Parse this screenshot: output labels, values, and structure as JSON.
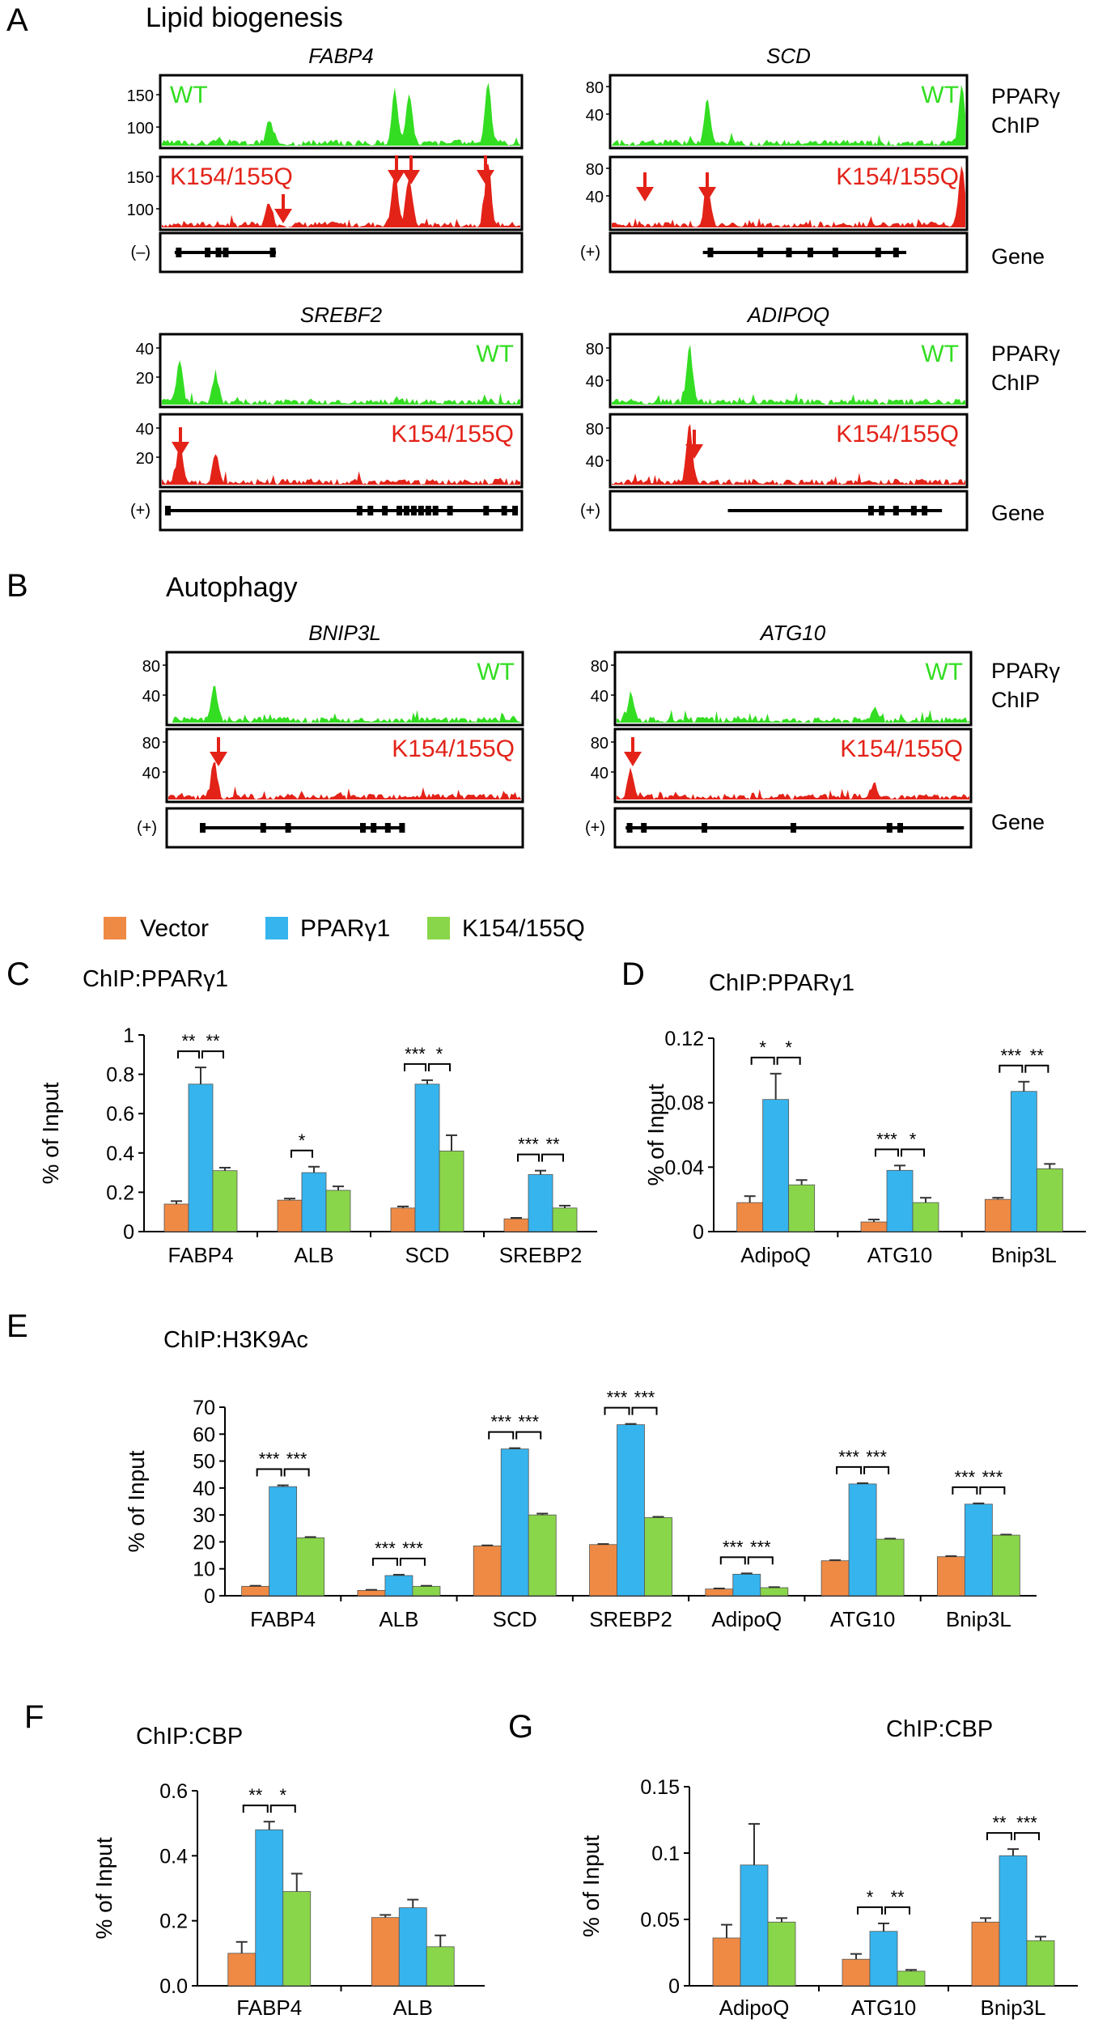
{
  "colors": {
    "wt": "#33dd22",
    "mut": "#e32218",
    "arrow": "#e32218",
    "vector": "#ef8a45",
    "ppar": "#36b4ee",
    "k154": "#8ad64a",
    "axis": "#000000"
  },
  "panels": {
    "A": "A",
    "A_title": "Lipid biogenesis",
    "B": "B",
    "B_title": "Autophagy",
    "C": "C",
    "D": "D",
    "E": "E",
    "F": "F",
    "G": "G"
  },
  "side_labels": {
    "ppar_line1": "PPARγ",
    "ppar_line2": "ChIP",
    "gene": "Gene"
  },
  "tracks": [
    {
      "gene": "FABP4",
      "wt_label": "WT",
      "mut_label": "K154/155Q",
      "ticks": [
        "150",
        "100"
      ],
      "strand": "(–)"
    },
    {
      "gene": "SCD",
      "wt_label": "WT",
      "mut_label": "K154/155Q",
      "ticks": [
        "80",
        "40"
      ],
      "strand": "(+)"
    },
    {
      "gene": "SREBF2",
      "wt_label": "WT",
      "mut_label": "K154/155Q",
      "ticks": [
        "40",
        "20"
      ],
      "strand": "(+)"
    },
    {
      "gene": "ADIPOQ",
      "wt_label": "WT",
      "mut_label": "K154/155Q",
      "ticks": [
        "80",
        "40"
      ],
      "strand": "(+)"
    },
    {
      "gene": "BNIP3L",
      "wt_label": "WT",
      "mut_label": "K154/155Q",
      "ticks": [
        "80",
        "40"
      ],
      "strand": "(+)"
    },
    {
      "gene": "ATG10",
      "wt_label": "WT",
      "mut_label": "K154/155Q",
      "ticks": [
        "80",
        "40"
      ],
      "strand": "(+)"
    }
  ],
  "legend": [
    "Vector",
    "PPARγ1",
    "K154/155Q"
  ],
  "chart_data": [
    {
      "panel": "C",
      "type": "bar",
      "title": "ChIP:PPARγ1",
      "ylabel": "% of Input",
      "xlabel": "",
      "ylim": [
        0,
        1
      ],
      "yticks": [
        "0",
        "0.2",
        "0.4",
        "0.6",
        "0.8",
        "1"
      ],
      "ytick_values": [
        0,
        0.2,
        0.4,
        0.6,
        0.8,
        1
      ],
      "categories": [
        "FABP4",
        "ALB",
        "SCD",
        "SREBP2"
      ],
      "series": [
        {
          "name": "Vector",
          "values": [
            0.14,
            0.16,
            0.12,
            0.065
          ],
          "errors": [
            0.015,
            0.008,
            0.008,
            0.005
          ]
        },
        {
          "name": "PPARγ1",
          "values": [
            0.75,
            0.3,
            0.75,
            0.29
          ],
          "errors": [
            0.085,
            0.03,
            0.02,
            0.02
          ]
        },
        {
          "name": "K154/155Q",
          "values": [
            0.31,
            0.21,
            0.41,
            0.12
          ],
          "errors": [
            0.015,
            0.02,
            0.08,
            0.012
          ]
        }
      ],
      "significance": [
        {
          "cat": 0,
          "left": "**",
          "right": "**"
        },
        {
          "cat": 1,
          "left": "*",
          "right": ""
        },
        {
          "cat": 2,
          "left": "***",
          "right": "*"
        },
        {
          "cat": 3,
          "left": "***",
          "right": "**"
        }
      ]
    },
    {
      "panel": "D",
      "type": "bar",
      "title": "ChIP:PPARγ1",
      "ylabel": "% of Input",
      "xlabel": "",
      "ylim": [
        0,
        0.12
      ],
      "yticks": [
        "0",
        "0.04",
        "0.08",
        "0.12"
      ],
      "ytick_values": [
        0,
        0.04,
        0.08,
        0.12
      ],
      "categories": [
        "AdipoQ",
        "ATG10",
        "Bnip3L"
      ],
      "series": [
        {
          "name": "Vector",
          "values": [
            0.018,
            0.006,
            0.02
          ],
          "errors": [
            0.004,
            0.0015,
            0.001
          ]
        },
        {
          "name": "PPARγ1",
          "values": [
            0.082,
            0.038,
            0.087
          ],
          "errors": [
            0.016,
            0.003,
            0.006
          ]
        },
        {
          "name": "K154/155Q",
          "values": [
            0.029,
            0.018,
            0.039
          ],
          "errors": [
            0.003,
            0.003,
            0.003
          ]
        }
      ],
      "significance": [
        {
          "cat": 0,
          "left": "*",
          "right": "*"
        },
        {
          "cat": 1,
          "left": "***",
          "right": "*"
        },
        {
          "cat": 2,
          "left": "***",
          "right": "**"
        }
      ]
    },
    {
      "panel": "E",
      "type": "bar",
      "title": "ChIP:H3K9Ac",
      "ylabel": "% of Input",
      "xlabel": "",
      "ylim": [
        0,
        70
      ],
      "yticks": [
        "0",
        "10",
        "20",
        "30",
        "40",
        "50",
        "60",
        "70"
      ],
      "ytick_values": [
        0,
        10,
        20,
        30,
        40,
        50,
        60,
        70
      ],
      "categories": [
        "FABP4",
        "ALB",
        "SCD",
        "SREBP2",
        "AdipoQ",
        "ATG10",
        "Bnip3L"
      ],
      "series": [
        {
          "name": "Vector",
          "values": [
            3.5,
            2,
            18.5,
            19,
            2.5,
            13,
            14.5
          ],
          "errors": [
            0.2,
            0.2,
            0.2,
            0.2,
            0.2,
            0.2,
            0.2
          ]
        },
        {
          "name": "PPARγ1",
          "values": [
            40.5,
            7.5,
            54.5,
            63.5,
            8,
            41.5,
            34
          ],
          "errors": [
            0.5,
            0.3,
            0.3,
            0.3,
            0.3,
            0.3,
            0.3
          ]
        },
        {
          "name": "K154/155Q",
          "values": [
            21.5,
            3.5,
            30,
            29,
            3,
            21,
            22.5
          ],
          "errors": [
            0.3,
            0.2,
            0.5,
            0.3,
            0.2,
            0.2,
            0.2
          ]
        }
      ],
      "significance": [
        {
          "cat": 0,
          "left": "***",
          "right": "***"
        },
        {
          "cat": 1,
          "left": "***",
          "right": "***"
        },
        {
          "cat": 2,
          "left": "***",
          "right": "***"
        },
        {
          "cat": 3,
          "left": "***",
          "right": "***"
        },
        {
          "cat": 4,
          "left": "***",
          "right": "***"
        },
        {
          "cat": 5,
          "left": "***",
          "right": "***"
        },
        {
          "cat": 6,
          "left": "***",
          "right": "***"
        }
      ]
    },
    {
      "panel": "F",
      "type": "bar",
      "title": "ChIP:CBP",
      "ylabel": "% of Input",
      "xlabel": "",
      "ylim": [
        0,
        0.6
      ],
      "yticks": [
        "0.0",
        "0.2",
        "0.4",
        "0.6"
      ],
      "ytick_values": [
        0,
        0.2,
        0.4,
        0.6
      ],
      "categories": [
        "FABP4",
        "ALB"
      ],
      "series": [
        {
          "name": "Vector",
          "values": [
            0.1,
            0.21
          ],
          "errors": [
            0.035,
            0.008
          ]
        },
        {
          "name": "PPARγ1",
          "values": [
            0.48,
            0.24
          ],
          "errors": [
            0.025,
            0.025
          ]
        },
        {
          "name": "K154/155Q",
          "values": [
            0.29,
            0.12
          ],
          "errors": [
            0.055,
            0.035
          ]
        }
      ],
      "significance": [
        {
          "cat": 0,
          "left": "**",
          "right": "*"
        }
      ]
    },
    {
      "panel": "G",
      "type": "bar",
      "title": "ChIP:CBP",
      "ylabel": "% of Input",
      "xlabel": "",
      "ylim": [
        0,
        0.15
      ],
      "yticks": [
        "0",
        "0.05",
        "0.1",
        "0.15"
      ],
      "ytick_values": [
        0,
        0.05,
        0.1,
        0.15
      ],
      "categories": [
        "AdipoQ",
        "ATG10",
        "Bnip3L"
      ],
      "series": [
        {
          "name": "Vector",
          "values": [
            0.036,
            0.02,
            0.048
          ],
          "errors": [
            0.01,
            0.004,
            0.003
          ]
        },
        {
          "name": "PPARγ1",
          "values": [
            0.091,
            0.041,
            0.098
          ],
          "errors": [
            0.031,
            0.006,
            0.005
          ]
        },
        {
          "name": "K154/155Q",
          "values": [
            0.048,
            0.011,
            0.034
          ],
          "errors": [
            0.003,
            0.001,
            0.003
          ]
        }
      ],
      "significance": [
        {
          "cat": 1,
          "left": "*",
          "right": "**"
        },
        {
          "cat": 2,
          "left": "**",
          "right": "***"
        }
      ]
    }
  ]
}
